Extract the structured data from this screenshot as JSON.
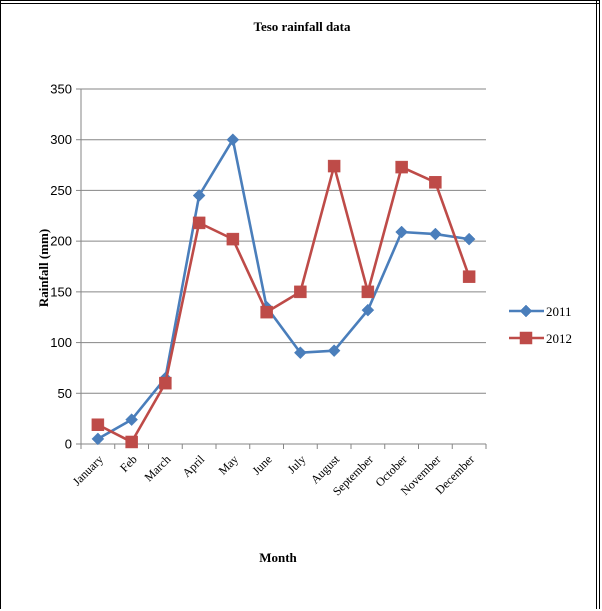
{
  "chart_data": {
    "type": "line",
    "title": "Teso rainfall data",
    "xlabel": "Month",
    "ylabel": "Rainfall (mm)",
    "ylim": [
      0,
      350
    ],
    "yticks": [
      0,
      50,
      100,
      150,
      200,
      250,
      300,
      350
    ],
    "grid": true,
    "legend_position": "right",
    "categories": [
      "January",
      "Feb",
      "March",
      "April",
      "May",
      "June",
      "July",
      "August",
      "September",
      "October",
      "November",
      "December"
    ],
    "series": [
      {
        "name": "2011",
        "color": "#4a7ebb",
        "marker": "diamond",
        "values": [
          5,
          24,
          65,
          245,
          300,
          135,
          90,
          92,
          132,
          209,
          207,
          202
        ]
      },
      {
        "name": "2012",
        "color": "#be4b48",
        "marker": "square",
        "values": [
          19,
          2,
          60,
          218,
          202,
          130,
          150,
          274,
          150,
          273,
          258,
          165
        ]
      }
    ]
  }
}
